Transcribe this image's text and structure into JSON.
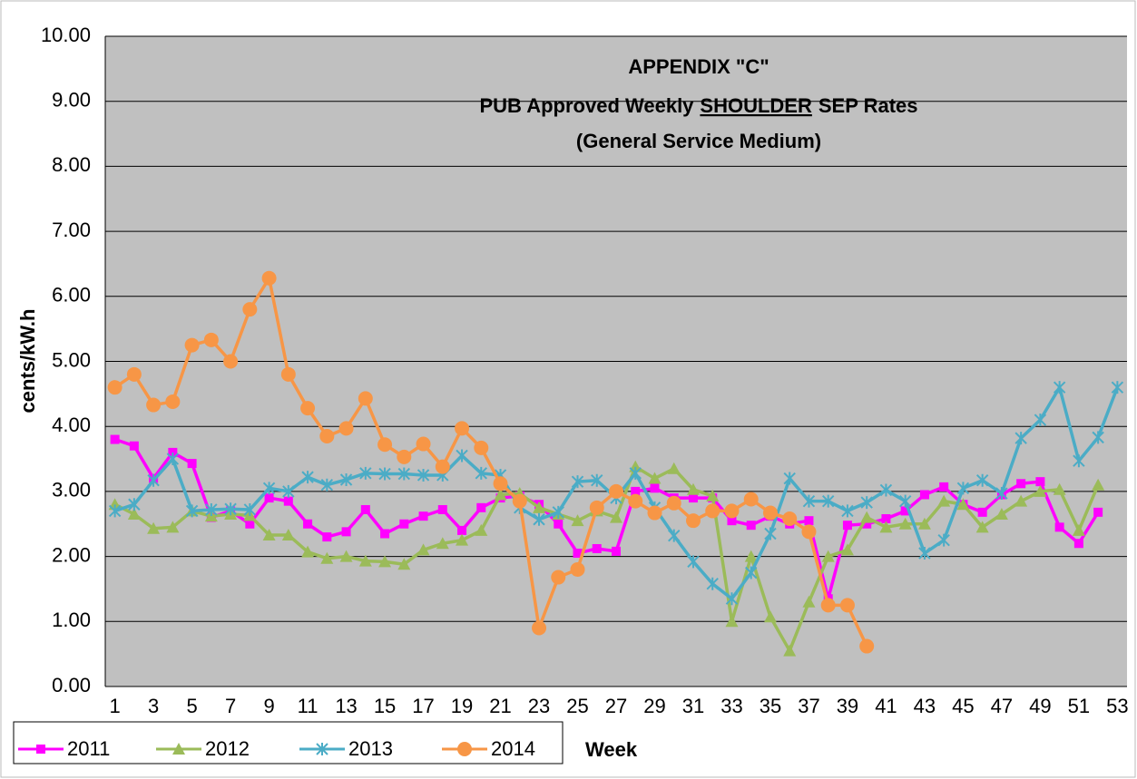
{
  "chart_data": {
    "type": "line",
    "title": [
      "APPENDIX \"C\"",
      [
        "PUB Approved Weekly",
        "SHOULDER",
        "SEP Rates"
      ],
      "(General Service Medium)"
    ],
    "ylabel": "cents/kW.h",
    "xlabel": "Week",
    "categories": [
      1,
      null,
      3,
      null,
      5,
      null,
      7,
      null,
      9,
      null,
      11,
      null,
      13,
      null,
      15,
      null,
      17,
      null,
      19,
      null,
      21,
      null,
      23,
      null,
      25,
      null,
      27,
      null,
      29,
      null,
      31,
      null,
      33,
      null,
      35,
      null,
      37,
      null,
      39,
      null,
      41,
      null,
      43,
      null,
      45,
      null,
      47,
      null,
      49,
      null,
      51,
      null,
      53
    ],
    "ylim": [
      0,
      10
    ],
    "yticks": [
      {
        "value": 0,
        "label": "0.00"
      },
      {
        "value": 1,
        "label": "1.00"
      },
      {
        "value": 2,
        "label": "2.00"
      },
      {
        "value": 3,
        "label": "3.00"
      },
      {
        "value": 4,
        "label": "4.00"
      },
      {
        "value": 5,
        "label": "5.00"
      },
      {
        "value": 6,
        "label": "6.00"
      },
      {
        "value": 7,
        "label": "7.00"
      },
      {
        "value": 8,
        "label": "8.00"
      },
      {
        "value": 9,
        "label": "9.00"
      },
      {
        "value": 10,
        "label": "10.00"
      }
    ],
    "grid": true,
    "legend": "bottom-left",
    "series": [
      {
        "name": "2011",
        "color": "#ff00ff",
        "marker": "square",
        "values": [
          3.8,
          3.7,
          3.2,
          3.6,
          3.43,
          2.6,
          2.7,
          2.5,
          2.9,
          2.85,
          2.5,
          2.3,
          2.38,
          2.72,
          2.35,
          2.5,
          2.62,
          2.72,
          2.4,
          2.75,
          2.9,
          2.93,
          2.8,
          2.5,
          2.05,
          2.12,
          2.08,
          3.0,
          3.05,
          2.9,
          2.9,
          2.9,
          2.55,
          2.48,
          2.62,
          2.5,
          2.55,
          1.35,
          2.48,
          2.5,
          2.58,
          2.7,
          2.95,
          3.07,
          2.8,
          2.68,
          2.95,
          3.12,
          3.15,
          2.45,
          2.2,
          2.68,
          null
        ]
      },
      {
        "name": "2012",
        "color": "#9bbb59",
        "marker": "triangle",
        "values": [
          2.8,
          2.65,
          2.43,
          2.45,
          2.7,
          2.62,
          2.65,
          2.63,
          2.33,
          2.33,
          2.07,
          1.97,
          2.0,
          1.93,
          1.92,
          1.88,
          2.1,
          2.2,
          2.25,
          2.4,
          2.95,
          2.97,
          2.75,
          2.65,
          2.55,
          2.7,
          2.6,
          3.38,
          3.2,
          3.35,
          3.03,
          2.93,
          1.0,
          2.0,
          1.07,
          0.55,
          1.3,
          2.0,
          2.1,
          2.6,
          2.45,
          2.5,
          2.5,
          2.85,
          2.8,
          2.45,
          2.65,
          2.85,
          3.0,
          3.03,
          2.4,
          3.1,
          null
        ]
      },
      {
        "name": "2013",
        "color": "#4bacc6",
        "marker": "asterisk",
        "values": [
          2.7,
          2.8,
          3.17,
          3.5,
          2.7,
          2.72,
          2.73,
          2.72,
          3.05,
          3.0,
          3.22,
          3.1,
          3.18,
          3.28,
          3.27,
          3.27,
          3.25,
          3.25,
          3.55,
          3.28,
          3.25,
          2.75,
          2.57,
          2.68,
          3.15,
          3.17,
          2.9,
          3.28,
          2.75,
          2.32,
          1.92,
          1.58,
          1.35,
          1.75,
          2.35,
          3.2,
          2.85,
          2.85,
          2.7,
          2.83,
          3.02,
          2.85,
          2.05,
          2.25,
          3.05,
          3.17,
          2.97,
          3.82,
          4.1,
          4.6,
          3.47,
          3.83,
          4.6
        ]
      },
      {
        "name": "2014",
        "color": "#f79646",
        "marker": "circle",
        "values": [
          4.6,
          4.8,
          4.33,
          4.38,
          5.25,
          5.33,
          5.0,
          5.8,
          6.28,
          4.8,
          4.28,
          3.85,
          3.97,
          4.43,
          3.72,
          3.53,
          3.73,
          3.38,
          3.97,
          3.67,
          3.12,
          2.85,
          0.9,
          1.68,
          1.8,
          2.75,
          3.0,
          2.85,
          2.67,
          2.82,
          2.55,
          2.7,
          2.7,
          2.88,
          2.67,
          2.58,
          2.38,
          1.25,
          1.25,
          0.62,
          null,
          null,
          null,
          null,
          null,
          null,
          null,
          null,
          null,
          null,
          null,
          null,
          null
        ]
      }
    ]
  }
}
